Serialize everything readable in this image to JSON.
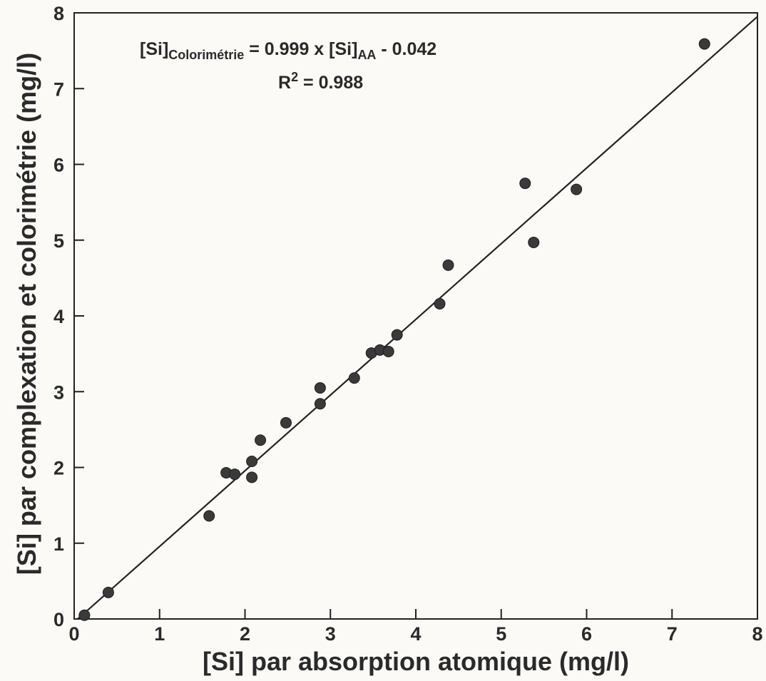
{
  "chart_data": {
    "type": "scatter",
    "title": "",
    "xlabel": "[Si] par absorption atomique  (mg/l)",
    "ylabel": "[Si] par complexation et colorimétrie  (mg/l)",
    "xlim": [
      0,
      8
    ],
    "ylim": [
      0,
      8
    ],
    "xticks": [
      "0",
      "1",
      "2",
      "3",
      "4",
      "5",
      "6",
      "7",
      "8"
    ],
    "yticks": [
      "0",
      "1",
      "2",
      "3",
      "4",
      "5",
      "6",
      "7",
      "8"
    ],
    "grid": false,
    "legend": "none",
    "annotation": {
      "eq_prefix": "[Si]",
      "eq_sub1": "Colorimétrie",
      "eq_middle": " = 0.999 x [Si]",
      "eq_sub2": "AA",
      "eq_suffix": " - 0.042",
      "r2_prefix": "R",
      "r2_sup": "2",
      "r2_suffix": " = 0.988"
    },
    "fit_line": {
      "slope": 0.999,
      "intercept": -0.042
    },
    "series": [
      {
        "points": [
          [
            0.12,
            0.05
          ],
          [
            0.4,
            0.35
          ],
          [
            1.58,
            1.36
          ],
          [
            1.78,
            1.93
          ],
          [
            1.88,
            1.91
          ],
          [
            2.08,
            2.08
          ],
          [
            2.08,
            1.87
          ],
          [
            2.18,
            2.36
          ],
          [
            2.48,
            2.59
          ],
          [
            2.88,
            3.05
          ],
          [
            2.88,
            2.84
          ],
          [
            3.28,
            3.18
          ],
          [
            3.48,
            3.51
          ],
          [
            3.58,
            3.55
          ],
          [
            3.68,
            3.53
          ],
          [
            3.78,
            3.75
          ],
          [
            4.28,
            4.16
          ],
          [
            4.38,
            4.67
          ],
          [
            5.28,
            5.75
          ],
          [
            5.38,
            4.97
          ],
          [
            5.88,
            5.67
          ],
          [
            7.38,
            7.59
          ]
        ]
      }
    ],
    "colors": {
      "line": "#222222",
      "marker": "#3a3a3a",
      "axis": "#222222",
      "background": "#fbfaf7"
    }
  }
}
